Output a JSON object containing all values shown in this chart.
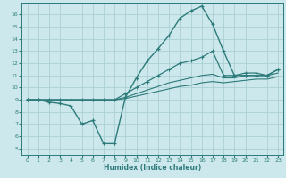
{
  "xlabel": "Humidex (Indice chaleur)",
  "bg_color": "#cce8ec",
  "grid_color": "#aad0d4",
  "line_color": "#2d7a7a",
  "xlim": [
    -0.5,
    23.5
  ],
  "ylim": [
    4.5,
    17.0
  ],
  "xticks": [
    0,
    1,
    2,
    3,
    4,
    5,
    6,
    7,
    8,
    9,
    10,
    11,
    12,
    13,
    14,
    15,
    16,
    17,
    18,
    19,
    20,
    21,
    22,
    23
  ],
  "yticks": [
    5,
    6,
    7,
    8,
    9,
    10,
    11,
    12,
    13,
    14,
    15,
    16
  ],
  "curve1_x": [
    0,
    1,
    2,
    3,
    4,
    5,
    6,
    7,
    8,
    9,
    10,
    11,
    12,
    13,
    14,
    15,
    16,
    17,
    18,
    19,
    20,
    21,
    22,
    23
  ],
  "curve1_y": [
    9.0,
    9.0,
    8.8,
    8.7,
    8.5,
    7.0,
    7.3,
    5.4,
    5.4,
    9.2,
    10.8,
    12.2,
    13.2,
    14.3,
    15.7,
    16.3,
    16.7,
    15.2,
    13.0,
    11.0,
    11.0,
    11.0,
    11.0,
    11.5
  ],
  "curve2_x": [
    0,
    1,
    2,
    3,
    4,
    5,
    6,
    7,
    8,
    9,
    10,
    11,
    12,
    13,
    14,
    15,
    16,
    17,
    18,
    19,
    20,
    21,
    22,
    23
  ],
  "curve2_y": [
    9.0,
    9.0,
    9.0,
    9.0,
    9.0,
    9.0,
    9.0,
    9.0,
    9.0,
    9.5,
    10.0,
    10.5,
    11.0,
    11.5,
    12.0,
    12.2,
    12.5,
    13.0,
    11.0,
    11.0,
    11.2,
    11.2,
    11.0,
    11.5
  ],
  "curve3_x": [
    0,
    1,
    2,
    3,
    4,
    5,
    6,
    7,
    8,
    9,
    10,
    11,
    12,
    13,
    14,
    15,
    16,
    17,
    18,
    19,
    20,
    21,
    22,
    23
  ],
  "curve3_y": [
    9.0,
    9.0,
    9.0,
    9.0,
    9.0,
    9.0,
    9.0,
    9.0,
    9.0,
    9.2,
    9.5,
    9.8,
    10.1,
    10.4,
    10.6,
    10.8,
    11.0,
    11.1,
    10.8,
    10.8,
    11.0,
    11.0,
    11.0,
    11.2
  ],
  "curve4_x": [
    0,
    1,
    2,
    3,
    4,
    5,
    6,
    7,
    8,
    9,
    10,
    11,
    12,
    13,
    14,
    15,
    16,
    17,
    18,
    19,
    20,
    21,
    22,
    23
  ],
  "curve4_y": [
    9.0,
    9.0,
    9.0,
    9.0,
    9.0,
    9.0,
    9.0,
    9.0,
    9.0,
    9.1,
    9.3,
    9.5,
    9.7,
    9.9,
    10.1,
    10.2,
    10.4,
    10.5,
    10.4,
    10.5,
    10.6,
    10.7,
    10.7,
    10.9
  ]
}
